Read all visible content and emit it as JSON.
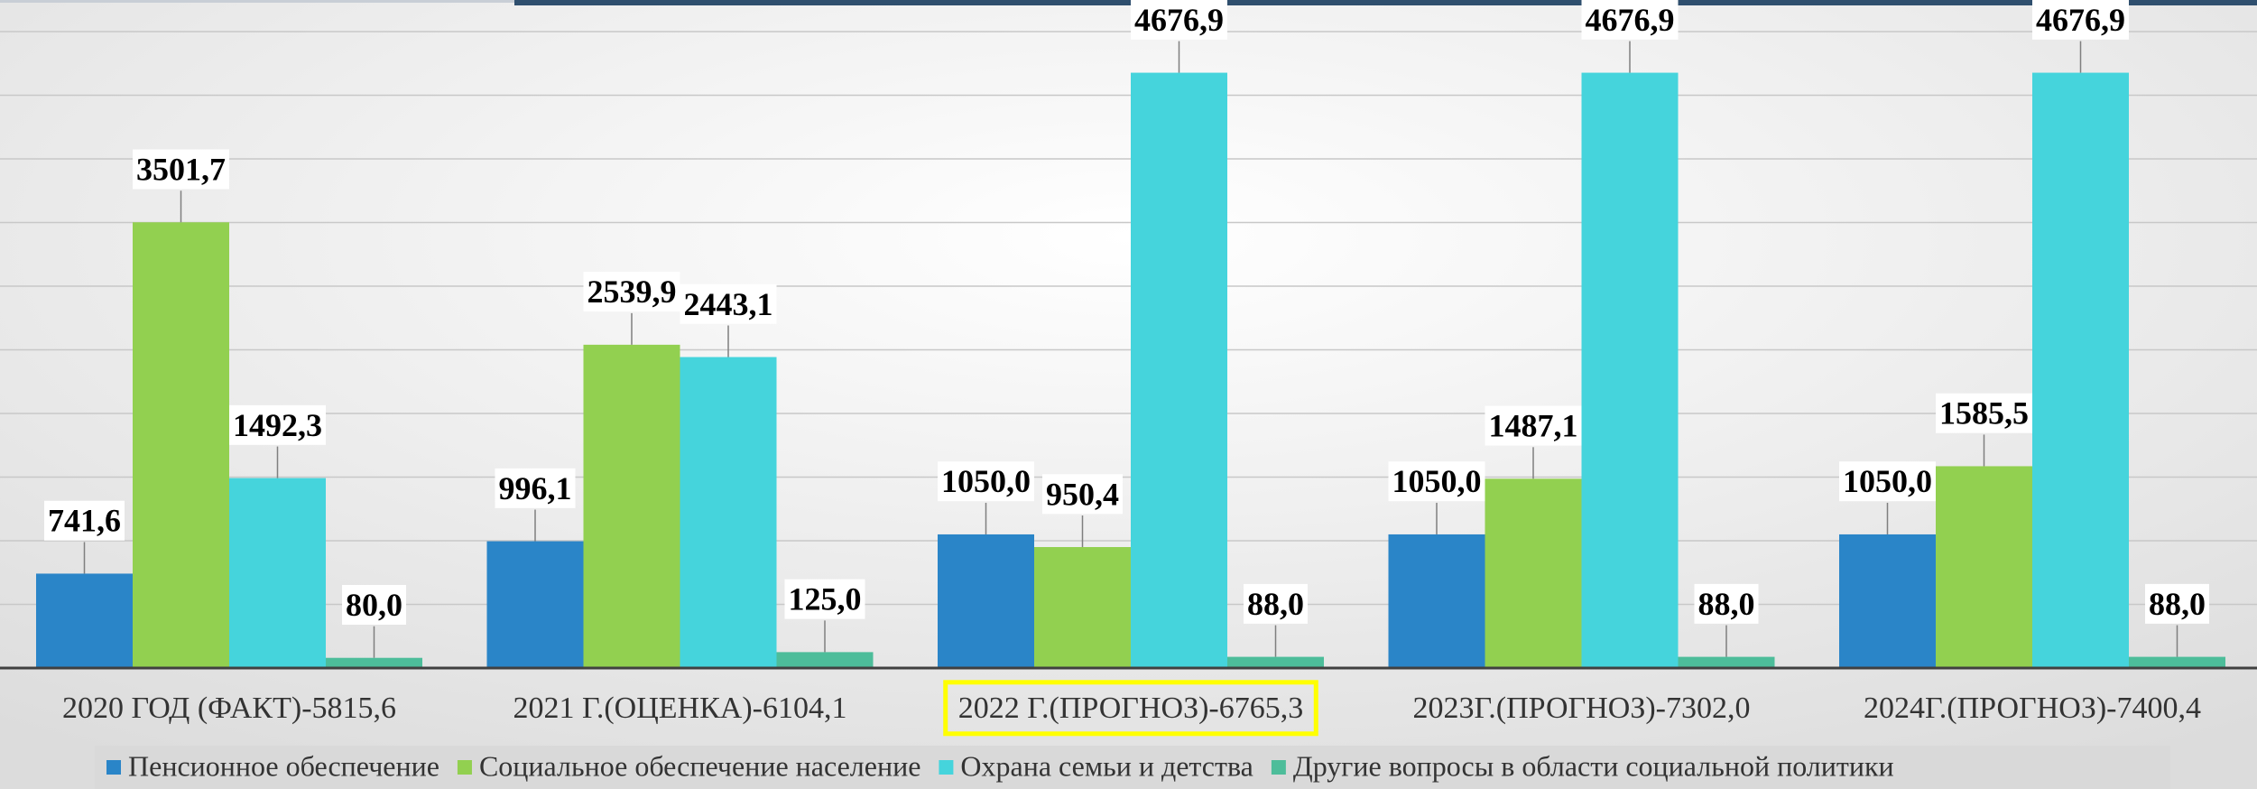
{
  "chart_data": {
    "type": "bar",
    "categories": [
      "2020 ГОД (ФАКТ)-5815,6",
      "2021 Г.(ОЦЕНКА)-6104,1",
      "2022 Г.(ПРОГНОЗ)-6765,3",
      "2023Г.(ПРОГНОЗ)-7302,0",
      "2024Г.(ПРОГНОЗ)-7400,4"
    ],
    "series": [
      {
        "name": "Пенсионное обеспечение",
        "color": "#2a85c8",
        "values": [
          741.6,
          996.1,
          1050.0,
          1050.0,
          1050.0
        ],
        "value_labels": [
          "741,6",
          "996,1",
          "1050,0",
          "1050,0",
          "1050,0"
        ]
      },
      {
        "name": "Социальное обеспечение население",
        "color": "#92d050",
        "values": [
          3501.7,
          2539.9,
          950.4,
          1487.1,
          1585.5
        ],
        "value_labels": [
          "3501,7",
          "2539,9",
          "950,4",
          "1487,1",
          "1585,5"
        ]
      },
      {
        "name": "Охрана семьи  и детства",
        "color": "#45d4dc",
        "values": [
          1492.3,
          2443.1,
          4676.9,
          4676.9,
          4676.9
        ],
        "value_labels": [
          "1492,3",
          "2443,1",
          "4676,9",
          "4676,9",
          "4676,9"
        ]
      },
      {
        "name": "Другие вопросы в области социальной политики",
        "color": "#4dbd9a",
        "values": [
          80.0,
          125.0,
          88.0,
          88.0,
          88.0
        ],
        "value_labels": [
          "80,0",
          "125,0",
          "88,0",
          "88,0",
          "88,0"
        ]
      }
    ],
    "ylim": [
      0,
      5000
    ],
    "yticks": [
      0,
      500,
      1000,
      1500,
      2000,
      2500,
      3000,
      3500,
      4000,
      4500,
      5000
    ],
    "grid": true,
    "legend": "bottom",
    "highlight_index": 2
  }
}
